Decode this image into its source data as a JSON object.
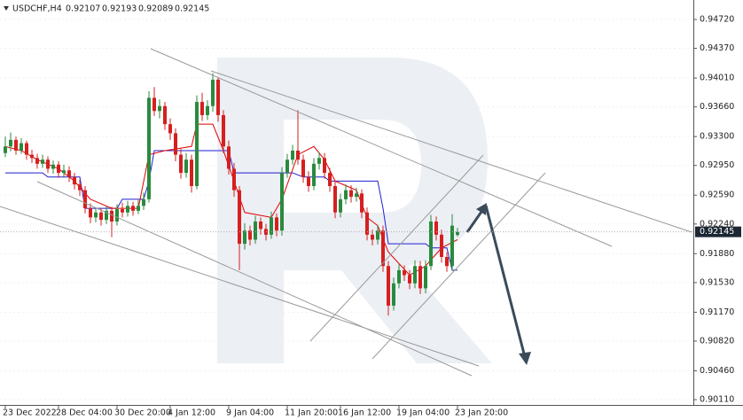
{
  "chart_data": {
    "type": "candlestick",
    "title": "USDCHF,H4",
    "up_color": "#2a8a3e",
    "down_color": "#d61f1f",
    "grid": true,
    "ylim": [
      0.90046,
      0.94956
    ],
    "yticks": [
      {
        "value": 0.9472,
        "label": "0.94720"
      },
      {
        "value": 0.9437,
        "label": "0.94370"
      },
      {
        "value": 0.9401,
        "label": "0.94010"
      },
      {
        "value": 0.9366,
        "label": "0.93660"
      },
      {
        "value": 0.933,
        "label": "0.93300"
      },
      {
        "value": 0.9295,
        "label": "0.92950"
      },
      {
        "value": 0.9259,
        "label": "0.92590"
      },
      {
        "value": 0.9224,
        "label": "0.92240"
      },
      {
        "value": 0.9188,
        "label": "0.91880"
      },
      {
        "value": 0.9153,
        "label": "0.91530"
      },
      {
        "value": 0.9117,
        "label": "0.91170"
      },
      {
        "value": 0.9082,
        "label": "0.90820"
      },
      {
        "value": 0.9046,
        "label": "0.90460"
      },
      {
        "value": 0.9011,
        "label": "0.90110"
      }
    ],
    "categories": [
      "23 Dec 2022",
      null,
      null,
      null,
      null,
      null,
      null,
      null,
      null,
      null,
      "28 Dec 04:00",
      null,
      null,
      null,
      null,
      null,
      null,
      null,
      null,
      null,
      null,
      "30 Dec 20:00",
      null,
      null,
      null,
      null,
      null,
      null,
      null,
      null,
      null,
      "4 Jan 12:00",
      null,
      null,
      null,
      null,
      null,
      null,
      null,
      null,
      null,
      null,
      "9 Jan 04:00",
      null,
      null,
      null,
      null,
      null,
      null,
      null,
      null,
      null,
      null,
      "11 Jan 20:00",
      null,
      null,
      null,
      null,
      null,
      null,
      null,
      null,
      null,
      "16 Jan 12:00",
      null,
      null,
      null,
      null,
      null,
      null,
      null,
      null,
      null,
      null,
      "19 Jan 04:00",
      null,
      null,
      null,
      null,
      null,
      null,
      null,
      null,
      null,
      null,
      "23 Jan 20:00"
    ],
    "open": [
      0.931,
      0.9318,
      0.9326,
      0.9313,
      0.9322,
      0.9308,
      0.9304,
      0.9297,
      0.9302,
      0.9291,
      0.9296,
      0.9286,
      0.9289,
      0.9281,
      0.9272,
      0.9265,
      0.9243,
      0.9232,
      0.9238,
      0.9229,
      0.924,
      0.9227,
      0.9242,
      0.9238,
      0.9246,
      0.924,
      0.9246,
      0.9254,
      0.9377,
      0.9361,
      0.9367,
      0.9345,
      0.9334,
      0.9308,
      0.9286,
      0.9302,
      0.927,
      0.9372,
      0.9356,
      0.9367,
      0.9399,
      0.9356,
      0.9318,
      0.9291,
      0.9265,
      0.92,
      0.9216,
      0.9205,
      0.9227,
      0.9218,
      0.9211,
      0.9232,
      0.9216,
      0.9286,
      0.9302,
      0.9313,
      0.9302,
      0.9281,
      0.927,
      0.9297,
      0.9304,
      0.9286,
      0.927,
      0.9238,
      0.9254,
      0.9265,
      0.9257,
      0.9261,
      0.9238,
      0.9211,
      0.9205,
      0.9216,
      0.9173,
      0.9125,
      0.9152,
      0.9168,
      0.9162,
      0.9152,
      0.9173,
      0.9146,
      0.9173,
      0.9227,
      0.9211,
      0.9184,
      0.9173,
      0.92107
    ],
    "high": [
      0.933,
      0.9335,
      0.933,
      0.9328,
      0.9325,
      0.9314,
      0.9309,
      0.9308,
      0.9306,
      0.9301,
      0.93,
      0.9296,
      0.9294,
      0.9286,
      0.9278,
      0.927,
      0.9249,
      0.9244,
      0.9243,
      0.9246,
      0.9245,
      0.9248,
      0.925,
      0.9252,
      0.9251,
      0.9253,
      0.9262,
      0.9385,
      0.939,
      0.9375,
      0.9372,
      0.9352,
      0.934,
      0.9315,
      0.931,
      0.9308,
      0.938,
      0.9383,
      0.9374,
      0.9407,
      0.9402,
      0.9362,
      0.9325,
      0.9298,
      0.927,
      0.9225,
      0.9222,
      0.9234,
      0.9232,
      0.9224,
      0.9239,
      0.9237,
      0.9293,
      0.9309,
      0.932,
      0.9362,
      0.9308,
      0.9288,
      0.9304,
      0.9311,
      0.931,
      0.9292,
      0.9276,
      0.9261,
      0.9272,
      0.9271,
      0.9268,
      0.9266,
      0.9244,
      0.9217,
      0.9223,
      0.9222,
      0.9179,
      0.9159,
      0.9175,
      0.9174,
      0.9168,
      0.918,
      0.9179,
      0.918,
      0.9235,
      0.9233,
      0.9217,
      0.919,
      0.9236,
      0.92193
    ],
    "low": [
      0.9305,
      0.9312,
      0.9308,
      0.9309,
      0.9302,
      0.9298,
      0.9291,
      0.9292,
      0.9286,
      0.9285,
      0.928,
      0.9281,
      0.9275,
      0.9266,
      0.9258,
      0.9237,
      0.9225,
      0.9226,
      0.9222,
      0.9224,
      0.9208,
      0.9222,
      0.9232,
      0.9233,
      0.9234,
      0.9236,
      0.9241,
      0.925,
      0.9355,
      0.9352,
      0.9338,
      0.9326,
      0.93,
      0.9279,
      0.928,
      0.9262,
      0.9266,
      0.9349,
      0.935,
      0.936,
      0.9348,
      0.931,
      0.9284,
      0.9257,
      0.9168,
      0.9193,
      0.9198,
      0.92,
      0.9211,
      0.9204,
      0.9206,
      0.9209,
      0.921,
      0.928,
      0.9296,
      0.9296,
      0.9274,
      0.9263,
      0.9265,
      0.929,
      0.9279,
      0.9263,
      0.9231,
      0.9232,
      0.9248,
      0.925,
      0.9251,
      0.9231,
      0.9204,
      0.9198,
      0.9199,
      0.9166,
      0.9113,
      0.9119,
      0.9146,
      0.9155,
      0.9145,
      0.9146,
      0.9139,
      0.914,
      0.9168,
      0.9204,
      0.9177,
      0.9166,
      0.9167,
      0.92089
    ],
    "close": [
      0.9318,
      0.9326,
      0.9313,
      0.9322,
      0.9308,
      0.9304,
      0.9297,
      0.9302,
      0.9291,
      0.9296,
      0.9286,
      0.9289,
      0.9281,
      0.9272,
      0.9265,
      0.9243,
      0.9232,
      0.9238,
      0.9229,
      0.924,
      0.9227,
      0.9242,
      0.9238,
      0.9246,
      0.924,
      0.9246,
      0.9254,
      0.9377,
      0.9361,
      0.9367,
      0.9345,
      0.9334,
      0.9308,
      0.9286,
      0.9302,
      0.927,
      0.9372,
      0.9356,
      0.9367,
      0.9399,
      0.9356,
      0.9318,
      0.9291,
      0.9265,
      0.92,
      0.9216,
      0.9205,
      0.9227,
      0.9218,
      0.9211,
      0.9232,
      0.9216,
      0.9286,
      0.9302,
      0.9313,
      0.9302,
      0.9281,
      0.927,
      0.9297,
      0.9304,
      0.9286,
      0.927,
      0.9238,
      0.9254,
      0.9265,
      0.9257,
      0.9261,
      0.9238,
      0.9211,
      0.9205,
      0.9216,
      0.9173,
      0.9125,
      0.9152,
      0.9168,
      0.9162,
      0.9152,
      0.9173,
      0.9146,
      0.9173,
      0.9227,
      0.9211,
      0.9184,
      0.9173,
      0.9222,
      0.92145
    ],
    "lines": [
      {
        "color": "#1f1fd0",
        "x": [
          0,
          7,
          8,
          14,
          15,
          21,
          22,
          26,
          27,
          28,
          42,
          43,
          54,
          56,
          60,
          61,
          70,
          71,
          72,
          79,
          80,
          83,
          84,
          85
        ],
        "values": [
          0.9286,
          0.9286,
          0.9281,
          0.9281,
          0.9243,
          0.9243,
          0.9254,
          0.9254,
          0.9276,
          0.9313,
          0.9313,
          0.9286,
          0.9286,
          0.9281,
          0.9281,
          0.9276,
          0.9276,
          0.9243,
          0.92,
          0.92,
          0.9195,
          0.9195,
          0.9168,
          0.9168
        ]
      },
      {
        "color": "#e00000",
        "x": [
          0,
          3,
          6,
          10,
          13,
          16,
          20,
          25,
          27,
          30,
          35,
          36,
          39,
          41,
          43,
          45,
          50,
          52,
          55,
          58,
          60,
          62,
          66,
          68,
          70,
          72,
          76,
          79,
          82,
          85
        ],
        "values": [
          0.9318,
          0.9313,
          0.9302,
          0.9291,
          0.9276,
          0.9254,
          0.9243,
          0.9243,
          0.9308,
          0.9313,
          0.9318,
          0.9345,
          0.9345,
          0.9313,
          0.9276,
          0.9238,
          0.9232,
          0.9254,
          0.9308,
          0.9318,
          0.9302,
          0.9276,
          0.9265,
          0.9232,
          0.9222,
          0.919,
          0.9162,
          0.9173,
          0.9195,
          0.9205
        ]
      }
    ]
  }
}
